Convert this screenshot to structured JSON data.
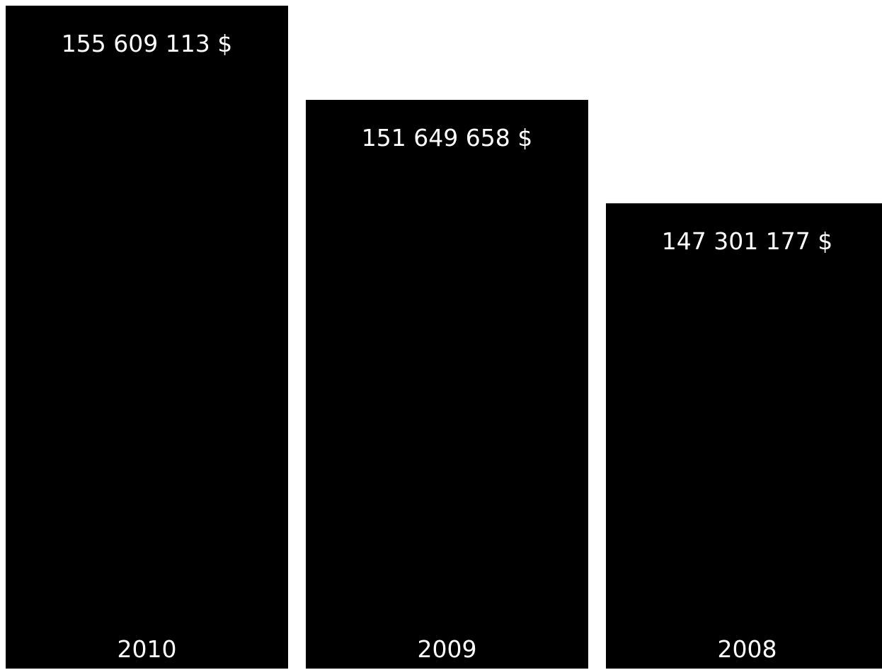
{
  "chart_data": {
    "type": "bar",
    "orientation": "vertical",
    "categories": [
      "2010",
      "2009",
      "2008"
    ],
    "values": [
      155609113,
      151649658,
      147301177
    ],
    "value_labels": [
      "155 609 113 $",
      "151 649 658 $",
      "147 301 177 $"
    ],
    "ylim": [
      0,
      155609113
    ],
    "grid": false,
    "legend": "none"
  },
  "colors": {
    "bar": "#000000",
    "label": "#ffffff",
    "background": "#ffffff"
  }
}
